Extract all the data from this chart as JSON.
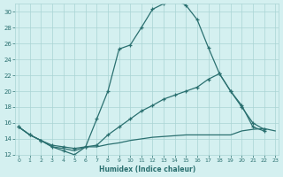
{
  "xlabel": "Humidex (Indice chaleur)",
  "bg_color": "#d4f0f0",
  "grid_color": "#aad4d4",
  "line_color": "#2a7070",
  "yticks": [
    12,
    14,
    16,
    18,
    20,
    22,
    24,
    26,
    28,
    30
  ],
  "xticks": [
    0,
    1,
    2,
    3,
    4,
    5,
    6,
    7,
    8,
    9,
    10,
    11,
    12,
    13,
    14,
    15,
    16,
    17,
    18,
    19,
    20,
    21,
    22,
    23
  ],
  "line1_x": [
    0,
    1,
    2,
    3,
    4,
    5,
    6,
    7,
    8,
    9,
    10,
    11,
    12,
    13,
    14,
    15,
    16,
    17,
    18,
    19,
    20,
    21,
    22
  ],
  "line1_y": [
    15.5,
    14.5,
    13.8,
    13.0,
    12.5,
    12.0,
    13.0,
    16.5,
    20.0,
    25.3,
    25.8,
    28.0,
    30.3,
    31.0,
    31.5,
    30.8,
    29.0,
    25.5,
    22.2,
    20.0,
    18.2,
    15.5,
    15.0
  ],
  "line2_x": [
    0,
    1,
    2,
    3,
    4,
    5,
    6,
    7,
    8,
    9,
    10,
    11,
    12,
    13,
    14,
    15,
    16,
    17,
    18,
    19,
    20,
    21,
    22
  ],
  "line2_y": [
    15.5,
    14.5,
    13.8,
    13.2,
    13.0,
    12.8,
    13.0,
    13.2,
    14.5,
    15.5,
    16.5,
    17.5,
    18.2,
    19.0,
    19.5,
    20.0,
    20.5,
    21.5,
    22.2,
    20.0,
    18.0,
    16.0,
    15.2
  ],
  "line3_x": [
    0,
    1,
    2,
    3,
    4,
    5,
    6,
    7,
    8,
    9,
    10,
    11,
    12,
    13,
    14,
    15,
    16,
    17,
    18,
    19,
    20,
    21,
    22,
    23
  ],
  "line3_y": [
    15.5,
    14.5,
    13.8,
    13.0,
    12.8,
    12.5,
    13.0,
    13.0,
    13.3,
    13.5,
    13.8,
    14.0,
    14.2,
    14.3,
    14.4,
    14.5,
    14.5,
    14.5,
    14.5,
    14.5,
    15.0,
    15.2,
    15.3,
    15.0
  ]
}
